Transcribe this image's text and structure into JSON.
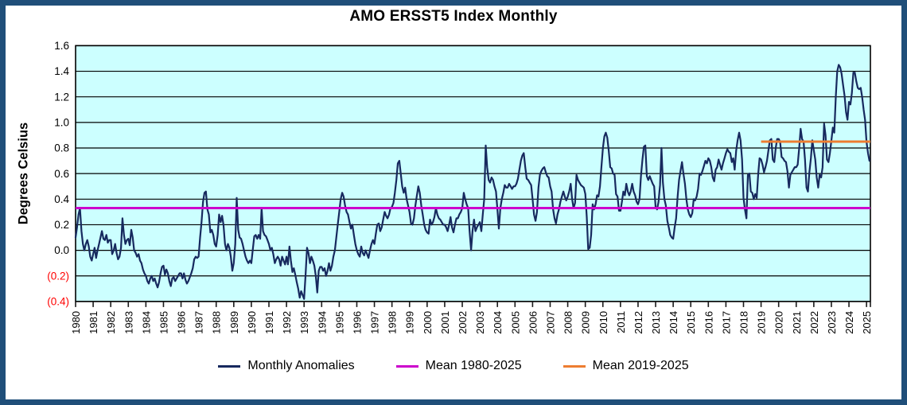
{
  "title": "AMO ERSST5 Index Monthly",
  "y_axis_title": "Degrees Celsius",
  "legend": [
    {
      "label": "Monthly Anomalies",
      "color": "#17295E"
    },
    {
      "label": "Mean 1980-2025",
      "color": "#CC00CC"
    },
    {
      "label": "Mean 2019-2025",
      "color": "#ED7D31"
    }
  ],
  "colors": {
    "frame_border": "#1F4E79",
    "page_bg": "#FFFFFF",
    "plot_bg": "#CCFFFF",
    "grid": "#000000",
    "axis_text": "#000000",
    "negative_tick_text": "#FF0000",
    "monthly_line": "#17295E",
    "mean_full_line": "#CC00CC",
    "mean_recent_line": "#ED7D31"
  },
  "chart_data": {
    "type": "line",
    "title": "AMO ERSST5 Index Monthly",
    "xlabel": "",
    "ylabel": "Degrees Celsius",
    "ylim": [
      -0.4,
      1.6
    ],
    "grid": true,
    "legend_position": "bottom",
    "x_domain": [
      1980,
      2025.22
    ],
    "y_ticks": [
      {
        "label": "1.6",
        "value": 1.6,
        "red": false
      },
      {
        "label": "1.4",
        "value": 1.4,
        "red": false
      },
      {
        "label": "1.2",
        "value": 1.2,
        "red": false
      },
      {
        "label": "1.0",
        "value": 1.0,
        "red": false
      },
      {
        "label": "0.8",
        "value": 0.8,
        "red": false
      },
      {
        "label": "0.6",
        "value": 0.6,
        "red": false
      },
      {
        "label": "0.4",
        "value": 0.4,
        "red": false
      },
      {
        "label": "0.2",
        "value": 0.2,
        "red": false
      },
      {
        "label": "0.0",
        "value": 0.0,
        "red": false
      },
      {
        "label": "(0.2)",
        "value": -0.2,
        "red": true
      },
      {
        "label": "(0.4)",
        "value": -0.4,
        "red": true
      }
    ],
    "x_tick_years": [
      1980,
      1981,
      1982,
      1983,
      1984,
      1985,
      1986,
      1987,
      1988,
      1989,
      1990,
      1991,
      1992,
      1993,
      1994,
      1995,
      1996,
      1997,
      1998,
      1999,
      2000,
      2001,
      2002,
      2003,
      2004,
      2005,
      2006,
      2007,
      2008,
      2009,
      2010,
      2011,
      2012,
      2013,
      2014,
      2015,
      2016,
      2017,
      2018,
      2019,
      2020,
      2021,
      2022,
      2023,
      2024,
      2025
    ],
    "series": [
      {
        "name": "Monthly Anomalies",
        "type": "monthly_line",
        "color": "#17295E",
        "start_year": 1980,
        "start_month": 1,
        "units": "Degrees Celsius",
        "values": [
          0.1,
          0.18,
          0.28,
          0.33,
          0.15,
          0.05,
          0.0,
          0.05,
          0.08,
          0.03,
          -0.05,
          -0.08,
          -0.03,
          0.02,
          -0.06,
          0.0,
          0.05,
          0.1,
          0.15,
          0.09,
          0.08,
          0.12,
          0.06,
          0.08,
          0.08,
          -0.03,
          0.0,
          0.05,
          -0.02,
          -0.07,
          -0.05,
          0.02,
          0.25,
          0.12,
          0.05,
          0.08,
          0.09,
          0.04,
          0.16,
          0.1,
          0.0,
          -0.02,
          -0.05,
          -0.03,
          -0.08,
          -0.1,
          -0.15,
          -0.18,
          -0.2,
          -0.24,
          -0.26,
          -0.22,
          -0.2,
          -0.24,
          -0.22,
          -0.26,
          -0.29,
          -0.25,
          -0.18,
          -0.13,
          -0.12,
          -0.19,
          -0.15,
          -0.18,
          -0.24,
          -0.28,
          -0.22,
          -0.21,
          -0.24,
          -0.22,
          -0.2,
          -0.18,
          -0.18,
          -0.22,
          -0.18,
          -0.23,
          -0.26,
          -0.24,
          -0.21,
          -0.18,
          -0.14,
          -0.07,
          -0.05,
          -0.06,
          -0.05,
          0.1,
          0.22,
          0.38,
          0.45,
          0.46,
          0.32,
          0.28,
          0.14,
          0.16,
          0.12,
          0.05,
          0.03,
          0.12,
          0.28,
          0.22,
          0.27,
          0.2,
          0.05,
          0.0,
          0.05,
          0.02,
          -0.05,
          -0.16,
          -0.1,
          0.05,
          0.41,
          0.16,
          0.1,
          0.09,
          0.05,
          0.0,
          -0.05,
          -0.08,
          -0.1,
          -0.08,
          -0.1,
          0.01,
          0.11,
          0.12,
          0.09,
          0.12,
          0.09,
          0.33,
          0.15,
          0.12,
          0.11,
          0.08,
          0.05,
          0.0,
          0.02,
          -0.03,
          -0.1,
          -0.07,
          -0.05,
          -0.07,
          -0.12,
          -0.05,
          -0.08,
          -0.11,
          -0.05,
          -0.11,
          0.03,
          -0.08,
          -0.17,
          -0.14,
          -0.19,
          -0.25,
          -0.3,
          -0.37,
          -0.32,
          -0.35,
          -0.38,
          -0.2,
          0.02,
          -0.02,
          -0.1,
          -0.05,
          -0.08,
          -0.12,
          -0.2,
          -0.33,
          -0.16,
          -0.13,
          -0.13,
          -0.16,
          -0.14,
          -0.2,
          -0.16,
          -0.1,
          -0.16,
          -0.12,
          -0.05,
          0.0,
          0.1,
          0.2,
          0.3,
          0.4,
          0.45,
          0.42,
          0.35,
          0.3,
          0.28,
          0.22,
          0.17,
          0.2,
          0.12,
          0.05,
          0.0,
          -0.03,
          -0.05,
          0.03,
          -0.02,
          -0.04,
          0.0,
          -0.03,
          -0.06,
          0.0,
          0.05,
          0.08,
          0.05,
          0.13,
          0.2,
          0.21,
          0.15,
          0.18,
          0.24,
          0.3,
          0.27,
          0.25,
          0.28,
          0.33,
          0.34,
          0.37,
          0.45,
          0.55,
          0.68,
          0.7,
          0.6,
          0.5,
          0.45,
          0.49,
          0.4,
          0.35,
          0.3,
          0.21,
          0.2,
          0.25,
          0.35,
          0.43,
          0.5,
          0.45,
          0.35,
          0.28,
          0.2,
          0.16,
          0.14,
          0.13,
          0.24,
          0.2,
          0.22,
          0.26,
          0.33,
          0.28,
          0.25,
          0.24,
          0.22,
          0.2,
          0.2,
          0.18,
          0.15,
          0.2,
          0.26,
          0.18,
          0.14,
          0.2,
          0.25,
          0.25,
          0.28,
          0.3,
          0.33,
          0.45,
          0.4,
          0.36,
          0.33,
          0.15,
          0.0,
          0.15,
          0.24,
          0.15,
          0.18,
          0.2,
          0.22,
          0.15,
          0.28,
          0.4,
          0.82,
          0.65,
          0.55,
          0.53,
          0.57,
          0.55,
          0.5,
          0.46,
          0.32,
          0.17,
          0.33,
          0.4,
          0.45,
          0.51,
          0.49,
          0.49,
          0.52,
          0.5,
          0.48,
          0.5,
          0.5,
          0.52,
          0.56,
          0.63,
          0.7,
          0.74,
          0.76,
          0.65,
          0.56,
          0.55,
          0.53,
          0.51,
          0.4,
          0.28,
          0.23,
          0.3,
          0.49,
          0.59,
          0.62,
          0.64,
          0.65,
          0.61,
          0.58,
          0.57,
          0.5,
          0.46,
          0.32,
          0.25,
          0.21,
          0.28,
          0.32,
          0.38,
          0.42,
          0.46,
          0.42,
          0.39,
          0.42,
          0.46,
          0.52,
          0.4,
          0.33,
          0.37,
          0.59,
          0.55,
          0.53,
          0.51,
          0.5,
          0.49,
          0.44,
          0.26,
          0.01,
          0.02,
          0.12,
          0.36,
          0.32,
          0.36,
          0.43,
          0.42,
          0.5,
          0.65,
          0.8,
          0.89,
          0.92,
          0.88,
          0.78,
          0.65,
          0.64,
          0.6,
          0.59,
          0.44,
          0.42,
          0.31,
          0.31,
          0.38,
          0.46,
          0.43,
          0.52,
          0.46,
          0.43,
          0.46,
          0.52,
          0.46,
          0.43,
          0.38,
          0.36,
          0.4,
          0.58,
          0.71,
          0.81,
          0.82,
          0.58,
          0.55,
          0.58,
          0.55,
          0.52,
          0.5,
          0.34,
          0.32,
          0.38,
          0.51,
          0.8,
          0.53,
          0.4,
          0.35,
          0.23,
          0.18,
          0.12,
          0.1,
          0.09,
          0.18,
          0.25,
          0.42,
          0.55,
          0.62,
          0.69,
          0.6,
          0.52,
          0.4,
          0.32,
          0.28,
          0.26,
          0.29,
          0.4,
          0.39,
          0.42,
          0.48,
          0.6,
          0.59,
          0.62,
          0.66,
          0.7,
          0.68,
          0.72,
          0.7,
          0.65,
          0.57,
          0.54,
          0.63,
          0.65,
          0.71,
          0.67,
          0.63,
          0.68,
          0.72,
          0.76,
          0.79,
          0.77,
          0.76,
          0.69,
          0.72,
          0.63,
          0.78,
          0.86,
          0.92,
          0.86,
          0.71,
          0.41,
          0.32,
          0.25,
          0.59,
          0.6,
          0.46,
          0.45,
          0.4,
          0.44,
          0.41,
          0.59,
          0.72,
          0.71,
          0.67,
          0.61,
          0.65,
          0.7,
          0.78,
          0.86,
          0.87,
          0.71,
          0.69,
          0.8,
          0.87,
          0.87,
          0.85,
          0.73,
          0.72,
          0.7,
          0.69,
          0.62,
          0.49,
          0.59,
          0.61,
          0.63,
          0.65,
          0.65,
          0.67,
          0.8,
          0.95,
          0.87,
          0.85,
          0.71,
          0.49,
          0.46,
          0.61,
          0.72,
          0.86,
          0.78,
          0.71,
          0.57,
          0.49,
          0.59,
          0.57,
          0.65,
          0.99,
          0.9,
          0.71,
          0.69,
          0.76,
          0.86,
          0.96,
          0.92,
          1.2,
          1.4,
          1.45,
          1.43,
          1.38,
          1.29,
          1.21,
          1.08,
          1.02,
          1.16,
          1.14,
          1.23,
          1.39,
          1.39,
          1.32,
          1.27,
          1.26,
          1.27,
          1.2,
          1.1,
          1.02,
          0.85,
          0.76,
          0.7
        ]
      },
      {
        "name": "Mean 1980-2025",
        "type": "hline",
        "color": "#CC00CC",
        "value": 0.33,
        "from": 1980,
        "to": 2025.22
      },
      {
        "name": "Mean 2019-2025",
        "type": "hline",
        "color": "#ED7D31",
        "value": 0.85,
        "from": 2019,
        "to": 2025.22
      }
    ]
  }
}
